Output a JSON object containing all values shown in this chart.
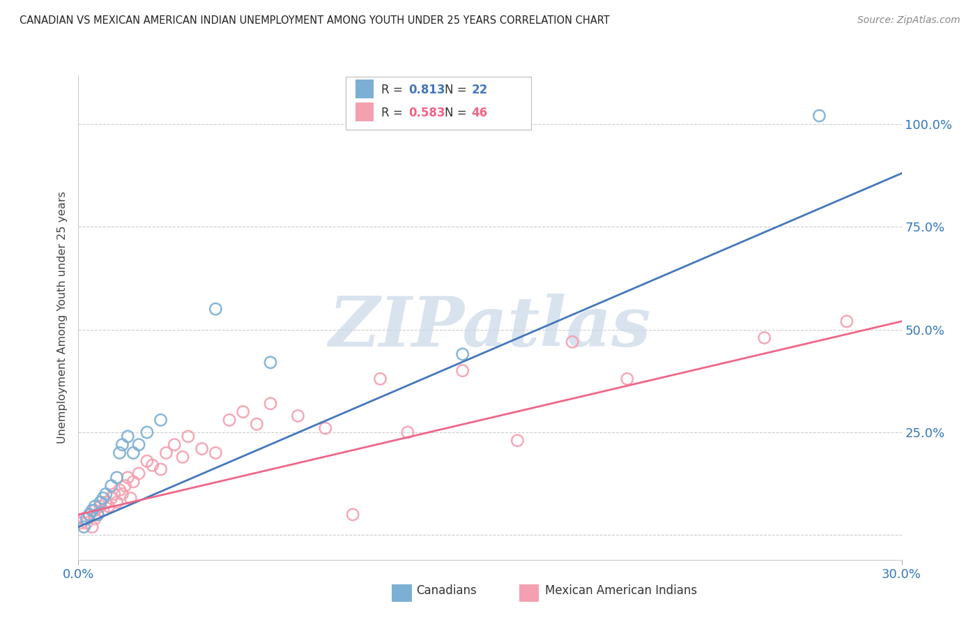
{
  "title": "CANADIAN VS MEXICAN AMERICAN INDIAN UNEMPLOYMENT AMONG YOUTH UNDER 25 YEARS CORRELATION CHART",
  "source": "Source: ZipAtlas.com",
  "ylabel": "Unemployment Among Youth under 25 years",
  "x_min": 0.0,
  "x_max": 0.3,
  "y_min": -0.06,
  "y_max": 1.12,
  "y_ticks": [
    0.0,
    0.25,
    0.5,
    0.75,
    1.0
  ],
  "y_tick_labels_right": [
    "",
    "25.0%",
    "50.0%",
    "75.0%",
    "100.0%"
  ],
  "x_tick_labels": [
    "0.0%",
    "30.0%"
  ],
  "canadian_R": 0.813,
  "canadian_N": 22,
  "mexican_R": 0.583,
  "mexican_N": 46,
  "blue_scatter_color": "#7BAFD4",
  "pink_scatter_color": "#F4A0B0",
  "blue_line_color": "#4477BB",
  "pink_line_color": "#EE6688",
  "watermark": "ZIPatlas",
  "watermark_color": "#C8D8E8",
  "legend_label_canadian": "Canadians",
  "legend_label_mexican": "Mexican American Indians",
  "canadians_x": [
    0.002,
    0.003,
    0.004,
    0.005,
    0.006,
    0.007,
    0.008,
    0.009,
    0.01,
    0.012,
    0.014,
    0.015,
    0.016,
    0.018,
    0.02,
    0.022,
    0.025,
    0.03,
    0.05,
    0.07,
    0.14,
    0.27
  ],
  "canadians_y": [
    0.02,
    0.04,
    0.05,
    0.06,
    0.07,
    0.05,
    0.08,
    0.09,
    0.1,
    0.12,
    0.14,
    0.2,
    0.22,
    0.24,
    0.2,
    0.22,
    0.25,
    0.28,
    0.55,
    0.42,
    0.44,
    1.02
  ],
  "mexicans_x": [
    0.001,
    0.002,
    0.003,
    0.004,
    0.005,
    0.006,
    0.006,
    0.007,
    0.008,
    0.009,
    0.01,
    0.011,
    0.012,
    0.013,
    0.014,
    0.015,
    0.016,
    0.017,
    0.018,
    0.019,
    0.02,
    0.022,
    0.025,
    0.027,
    0.03,
    0.032,
    0.035,
    0.038,
    0.04,
    0.045,
    0.05,
    0.055,
    0.06,
    0.065,
    0.07,
    0.08,
    0.09,
    0.1,
    0.11,
    0.12,
    0.14,
    0.16,
    0.18,
    0.2,
    0.25,
    0.28
  ],
  "mexicans_y": [
    0.03,
    0.04,
    0.03,
    0.05,
    0.02,
    0.06,
    0.04,
    0.05,
    0.07,
    0.06,
    0.08,
    0.07,
    0.09,
    0.1,
    0.08,
    0.11,
    0.1,
    0.12,
    0.14,
    0.09,
    0.13,
    0.15,
    0.18,
    0.17,
    0.16,
    0.2,
    0.22,
    0.19,
    0.24,
    0.21,
    0.2,
    0.28,
    0.3,
    0.27,
    0.32,
    0.29,
    0.26,
    0.05,
    0.38,
    0.25,
    0.4,
    0.23,
    0.47,
    0.38,
    0.48,
    0.52
  ],
  "blue_line_x0": 0.0,
  "blue_line_y0": 0.02,
  "blue_line_x1": 0.3,
  "blue_line_y1": 0.88,
  "pink_line_x0": 0.0,
  "pink_line_y0": 0.05,
  "pink_line_x1": 0.3,
  "pink_line_y1": 0.52
}
